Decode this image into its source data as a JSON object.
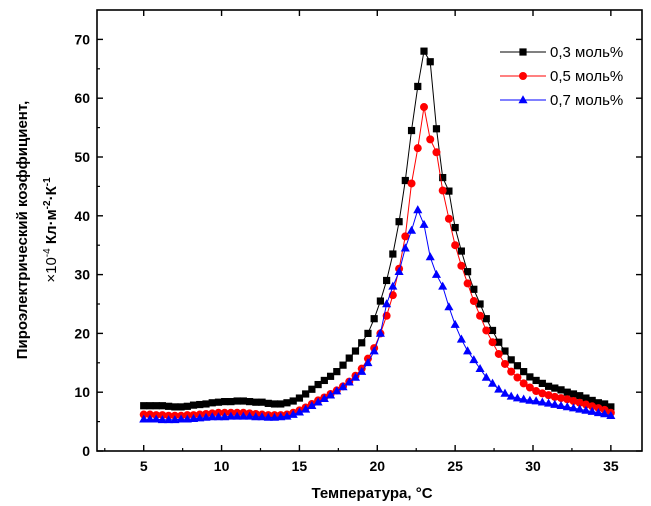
{
  "chart_data": {
    "type": "line",
    "xlabel_main": "Температура, ",
    "xlabel_unit": "°C",
    "ylabel_main": "Пироэлектрический коэффициент,",
    "ylabel_factor": "×10",
    "ylabel_factor_exp": "-4",
    "ylabel_unit": " Кл·м",
    "ylabel_unit_exp1": "-2",
    "ylabel_unit_mid": "·К",
    "ylabel_unit_exp2": "-1",
    "xlim": [
      2,
      37
    ],
    "ylim": [
      0,
      75
    ],
    "xticks": [
      5,
      10,
      15,
      20,
      25,
      30,
      35
    ],
    "yticks": [
      0,
      10,
      20,
      30,
      40,
      50,
      60,
      70
    ],
    "legend_position": "top-right",
    "series": [
      {
        "name": "0,3 моль%",
        "color": "#000000",
        "marker": "square",
        "x": [
          5,
          5.4,
          5.8,
          6.2,
          6.6,
          7,
          7.4,
          7.8,
          8.2,
          8.6,
          9,
          9.4,
          9.8,
          10.2,
          10.6,
          11,
          11.4,
          11.8,
          12.2,
          12.6,
          13,
          13.4,
          13.8,
          14.2,
          14.6,
          15,
          15.4,
          15.8,
          16.2,
          16.6,
          17,
          17.4,
          17.8,
          18.2,
          18.6,
          19,
          19.4,
          19.8,
          20.2,
          20.6,
          21,
          21.4,
          21.8,
          22.2,
          22.6,
          23,
          23.4,
          23.8,
          24.2,
          24.6,
          25,
          25.4,
          25.8,
          26.2,
          26.6,
          27,
          27.4,
          27.8,
          28.2,
          28.6,
          29,
          29.4,
          29.8,
          30.2,
          30.6,
          31,
          31.4,
          31.8,
          32.2,
          32.6,
          33,
          33.4,
          33.8,
          34.2,
          34.6,
          35
        ],
        "y": [
          7.7,
          7.7,
          7.7,
          7.7,
          7.6,
          7.5,
          7.5,
          7.6,
          7.8,
          7.9,
          8.0,
          8.2,
          8.3,
          8.4,
          8.4,
          8.5,
          8.5,
          8.4,
          8.3,
          8.3,
          8.1,
          8.0,
          8.0,
          8.2,
          8.5,
          9.0,
          9.7,
          10.5,
          11.3,
          12.0,
          12.7,
          13.5,
          14.6,
          15.8,
          17.0,
          18.4,
          20.0,
          22.5,
          25.5,
          29.0,
          33.5,
          39.0,
          46.0,
          54.5,
          62.0,
          68.0,
          66.2,
          54.8,
          46.5,
          44.2,
          38.0,
          34.0,
          30.5,
          27.5,
          25.0,
          22.5,
          20.5,
          18.5,
          17.0,
          15.5,
          14.5,
          13.5,
          12.6,
          12.0,
          11.5,
          11.0,
          10.7,
          10.4,
          10.0,
          9.7,
          9.4,
          9.0,
          8.6,
          8.2,
          8.0,
          7.5
        ]
      },
      {
        "name": "0,5 моль%",
        "color": "#ff0000",
        "marker": "circle",
        "x": [
          5,
          5.4,
          5.8,
          6.2,
          6.6,
          7,
          7.4,
          7.8,
          8.2,
          8.6,
          9,
          9.4,
          9.8,
          10.2,
          10.6,
          11,
          11.4,
          11.8,
          12.2,
          12.6,
          13,
          13.4,
          13.8,
          14.2,
          14.6,
          15,
          15.4,
          15.8,
          16.2,
          16.6,
          17,
          17.4,
          17.8,
          18.2,
          18.6,
          19,
          19.4,
          19.8,
          20.2,
          20.6,
          21,
          21.4,
          21.8,
          22.2,
          22.6,
          23,
          23.4,
          23.8,
          24.2,
          24.6,
          25,
          25.4,
          25.8,
          26.2,
          26.6,
          27,
          27.4,
          27.8,
          28.2,
          28.6,
          29,
          29.4,
          29.8,
          30.2,
          30.6,
          31,
          31.4,
          31.8,
          32.2,
          32.6,
          33,
          33.4,
          33.8,
          34.2,
          34.6,
          35
        ],
        "y": [
          6.2,
          6.2,
          6.1,
          6.1,
          6.0,
          6.0,
          6.0,
          6.1,
          6.1,
          6.2,
          6.3,
          6.4,
          6.5,
          6.5,
          6.5,
          6.5,
          6.5,
          6.4,
          6.3,
          6.2,
          6.1,
          6.1,
          6.1,
          6.2,
          6.5,
          6.9,
          7.4,
          8.0,
          8.6,
          9.1,
          9.7,
          10.3,
          11.0,
          11.8,
          12.8,
          14.0,
          15.7,
          17.5,
          20.0,
          23.0,
          26.5,
          31.0,
          36.5,
          45.5,
          51.5,
          58.5,
          53.0,
          50.8,
          44.3,
          39.5,
          35.0,
          31.5,
          28.5,
          25.5,
          23.0,
          20.5,
          18.5,
          16.5,
          14.8,
          13.5,
          12.5,
          11.5,
          10.8,
          10.2,
          9.8,
          9.5,
          9.2,
          9.0,
          8.8,
          8.5,
          8.2,
          7.9,
          7.6,
          7.3,
          7.0,
          6.5
        ]
      },
      {
        "name": "0,7 моль%",
        "color": "#0000ff",
        "marker": "triangle",
        "x": [
          5,
          5.4,
          5.8,
          6.2,
          6.6,
          7,
          7.4,
          7.8,
          8.2,
          8.6,
          9,
          9.4,
          9.8,
          10.2,
          10.6,
          11,
          11.4,
          11.8,
          12.2,
          12.6,
          13,
          13.4,
          13.8,
          14.2,
          14.6,
          15,
          15.4,
          15.8,
          16.2,
          16.6,
          17,
          17.4,
          17.8,
          18.2,
          18.6,
          19,
          19.4,
          19.8,
          20.2,
          20.6,
          21,
          21.4,
          21.8,
          22.2,
          22.6,
          23,
          23.4,
          23.8,
          24.2,
          24.6,
          25,
          25.4,
          25.8,
          26.2,
          26.6,
          27,
          27.4,
          27.8,
          28.2,
          28.6,
          29,
          29.4,
          29.8,
          30.2,
          30.6,
          31,
          31.4,
          31.8,
          32.2,
          32.6,
          33,
          33.4,
          33.8,
          34.2,
          34.6,
          35
        ],
        "y": [
          5.4,
          5.4,
          5.4,
          5.3,
          5.3,
          5.3,
          5.4,
          5.4,
          5.5,
          5.6,
          5.7,
          5.8,
          5.8,
          5.8,
          5.9,
          5.9,
          5.9,
          5.9,
          5.8,
          5.8,
          5.7,
          5.7,
          5.8,
          5.9,
          6.2,
          6.6,
          7.1,
          7.7,
          8.3,
          8.9,
          9.5,
          10.2,
          10.9,
          11.7,
          12.5,
          13.5,
          15.0,
          17.0,
          20.0,
          25.0,
          28.0,
          30.5,
          34.5,
          37.5,
          41.0,
          38.5,
          33.0,
          30.0,
          28.0,
          24.5,
          21.5,
          19.0,
          17.0,
          15.5,
          14.0,
          12.5,
          11.5,
          10.5,
          9.8,
          9.3,
          9.0,
          8.8,
          8.6,
          8.5,
          8.3,
          8.1,
          7.9,
          7.7,
          7.5,
          7.3,
          7.1,
          6.9,
          6.7,
          6.5,
          6.3,
          6.0
        ]
      }
    ]
  }
}
